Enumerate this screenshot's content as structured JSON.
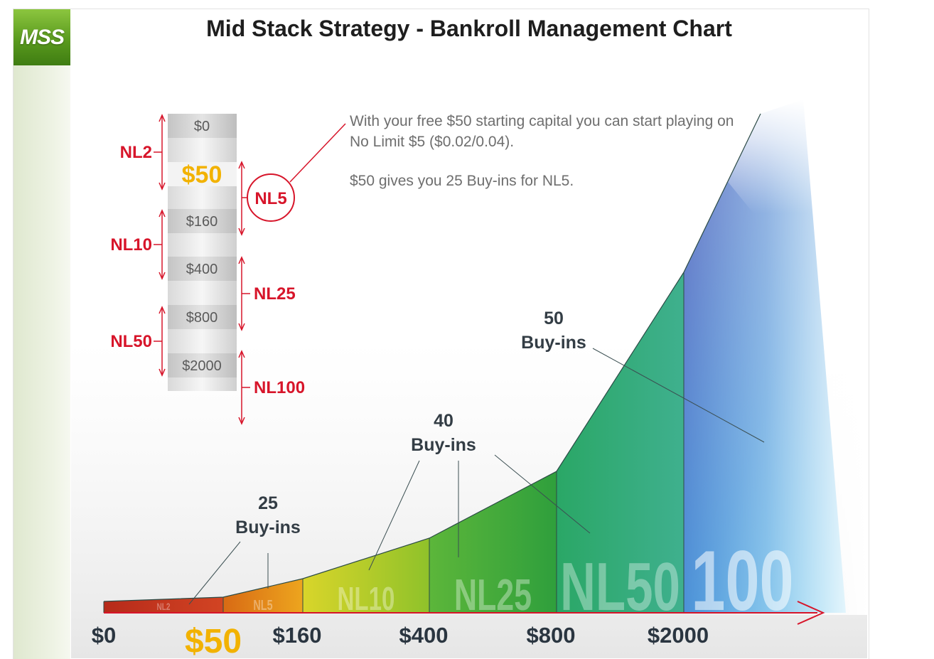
{
  "header": {
    "logo": "MSS",
    "title": "Mid Stack Strategy - Bankroll Management Chart"
  },
  "note": {
    "line1": "With your free $50 starting capital you can start playing on No Limit $5 ($0.02/0.04).",
    "line2": "$50 gives you 25 Buy-ins for NL5."
  },
  "legend_ladder": {
    "steps": [
      "$0",
      "$50",
      "$160",
      "$400",
      "$800",
      "$2000"
    ],
    "highlighted_step": "$50",
    "left_levels": [
      "NL2",
      "NL10",
      "NL50"
    ],
    "right_levels": [
      "NL5",
      "NL25",
      "NL100"
    ],
    "highlighted_level": "NL5"
  },
  "chart_data": {
    "type": "area",
    "x_ticks": [
      "$0",
      "$50",
      "$160",
      "$400",
      "$800",
      "$2000"
    ],
    "highlighted_tick": "$50",
    "segments": [
      {
        "level": "NL2",
        "from": "$0",
        "to": "$50",
        "color": "#c8321e"
      },
      {
        "level": "NL5",
        "from": "$50",
        "to": "$160",
        "color": "#e08a12"
      },
      {
        "level": "NL10",
        "from": "$160",
        "to": "$400",
        "color": "#b7cf1e"
      },
      {
        "level": "NL25",
        "from": "$400",
        "to": "$800",
        "color": "#3ea83a"
      },
      {
        "level": "NL50",
        "from": "$800",
        "to": "$2000",
        "color": "#2ea77a"
      },
      {
        "level": "100",
        "from": "$2000",
        "to": "",
        "color": "#3aa6e0"
      }
    ],
    "annotations": [
      {
        "line1": "25",
        "line2": "Buy-ins"
      },
      {
        "line1": "40",
        "line2": "Buy-ins"
      },
      {
        "line1": "50",
        "line2": "Buy-ins"
      }
    ],
    "colors": {
      "accent": "#d7152a",
      "highlight": "#f2b200",
      "annotation_text": "#333d45"
    }
  }
}
